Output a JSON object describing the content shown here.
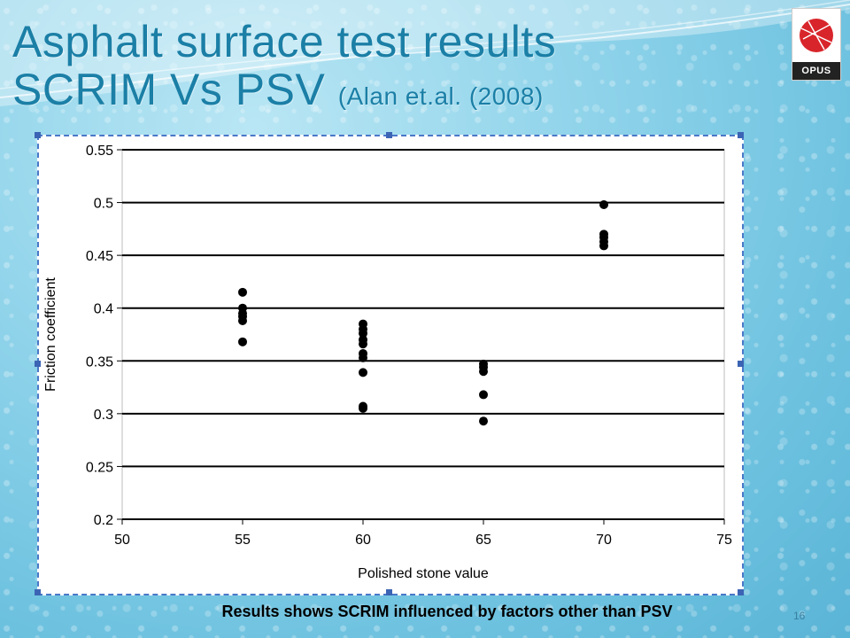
{
  "slide": {
    "title_line1": "Asphalt surface test results",
    "title_line2": "SCRIM Vs PSV",
    "title_citation": "(Alan et.al. (2008)",
    "logo_text": "OPUS",
    "caption": "Results shows SCRIM influenced by factors other than PSV",
    "page_number": "16",
    "accent_color": "#1b7fa6"
  },
  "chart_data": {
    "type": "scatter",
    "title": "",
    "xlabel": "Polished stone value",
    "ylabel": "Friction coefficient",
    "xlim": [
      50,
      75
    ],
    "ylim": [
      0.2,
      0.55
    ],
    "x_ticks": [
      "50",
      "55",
      "60",
      "65",
      "70",
      "75"
    ],
    "y_ticks": [
      "0.2",
      "0.25",
      "0.3",
      "0.35",
      "0.4",
      "0.45",
      "0.5",
      "0.55"
    ],
    "x_tick_values": [
      50,
      55,
      60,
      65,
      70,
      75
    ],
    "y_tick_values": [
      0.2,
      0.25,
      0.3,
      0.35,
      0.4,
      0.45,
      0.5,
      0.55
    ],
    "grid": "horizontal",
    "marker_color": "#000000",
    "points": [
      {
        "x": 55,
        "y": 0.415
      },
      {
        "x": 55,
        "y": 0.4
      },
      {
        "x": 55,
        "y": 0.395
      },
      {
        "x": 55,
        "y": 0.392
      },
      {
        "x": 55,
        "y": 0.388
      },
      {
        "x": 55,
        "y": 0.368
      },
      {
        "x": 60,
        "y": 0.385
      },
      {
        "x": 60,
        "y": 0.38
      },
      {
        "x": 60,
        "y": 0.376
      },
      {
        "x": 60,
        "y": 0.37
      },
      {
        "x": 60,
        "y": 0.366
      },
      {
        "x": 60,
        "y": 0.357
      },
      {
        "x": 60,
        "y": 0.353
      },
      {
        "x": 60,
        "y": 0.339
      },
      {
        "x": 60,
        "y": 0.307
      },
      {
        "x": 60,
        "y": 0.305
      },
      {
        "x": 65,
        "y": 0.347
      },
      {
        "x": 65,
        "y": 0.344
      },
      {
        "x": 65,
        "y": 0.34
      },
      {
        "x": 65,
        "y": 0.318
      },
      {
        "x": 65,
        "y": 0.293
      },
      {
        "x": 70,
        "y": 0.498
      },
      {
        "x": 70,
        "y": 0.47
      },
      {
        "x": 70,
        "y": 0.467
      },
      {
        "x": 70,
        "y": 0.463
      },
      {
        "x": 70,
        "y": 0.459
      }
    ]
  }
}
